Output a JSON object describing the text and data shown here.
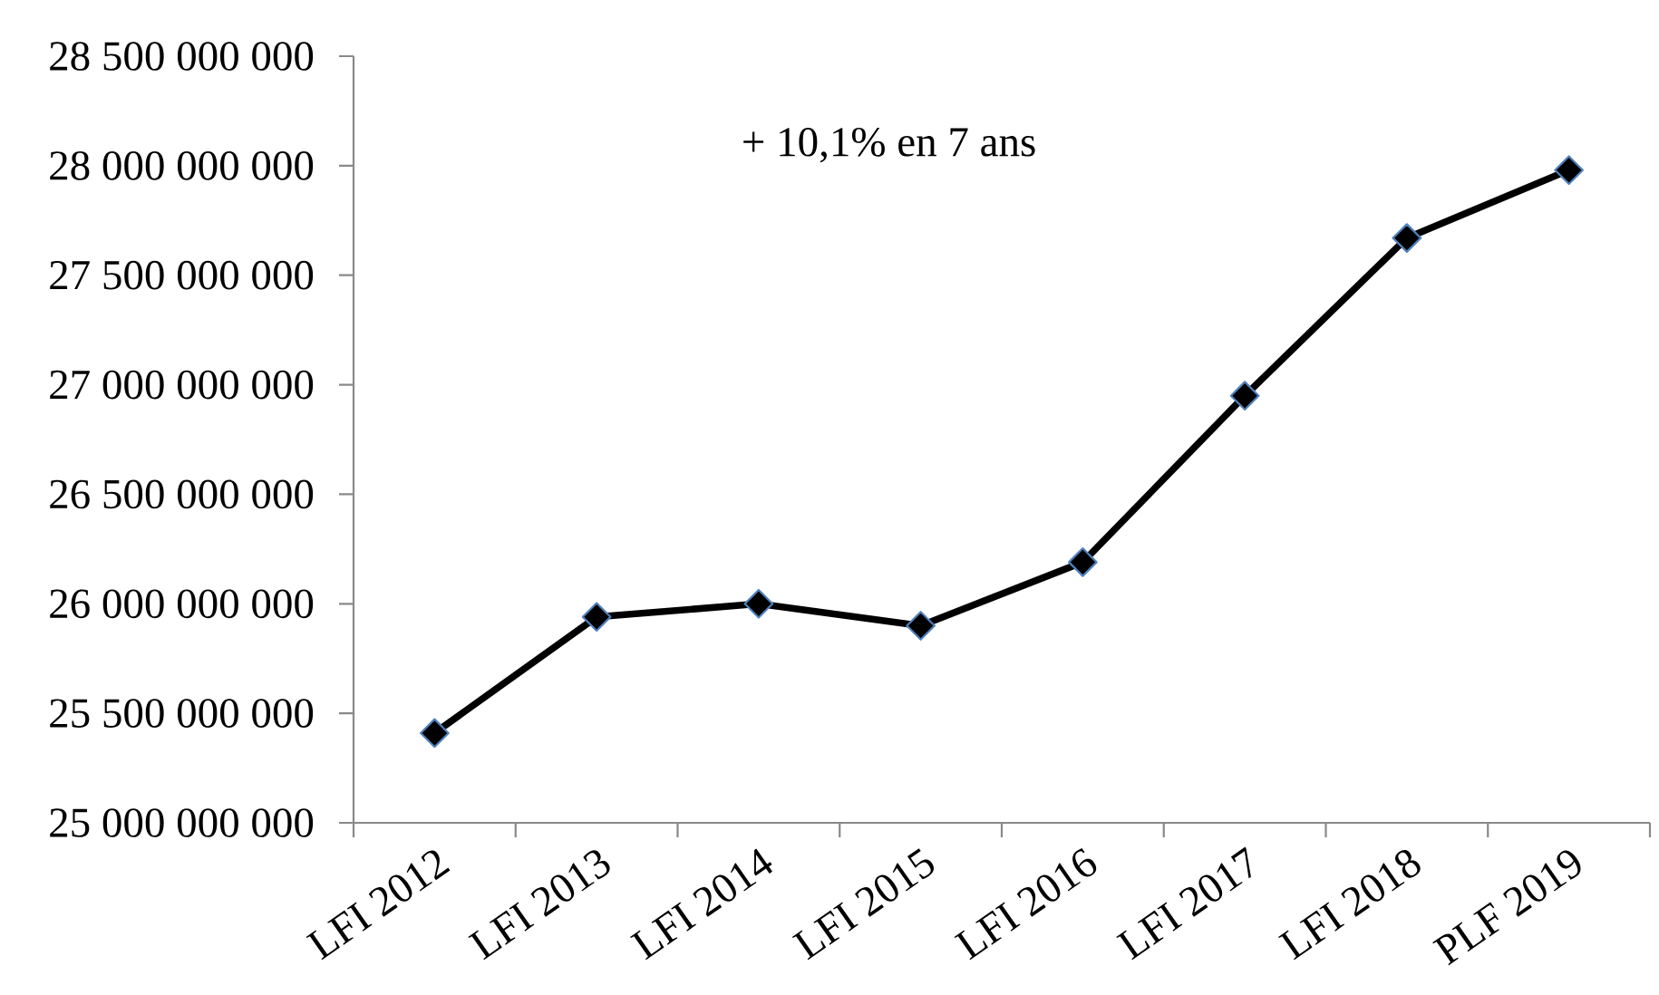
{
  "chart_data": {
    "type": "line",
    "categories": [
      "LFI 2012",
      "LFI 2013",
      "LFI 2014",
      "LFI 2015",
      "LFI 2016",
      "LFI 2017",
      "LFI 2018",
      "PLF 2019"
    ],
    "values": [
      25410000000,
      25940000000,
      26000000000,
      25900000000,
      26190000000,
      26950000000,
      27670000000,
      27980000000
    ],
    "color": "#000000",
    "ylim": [
      25000000000,
      28500000000
    ],
    "yticks": [
      {
        "value": 25000000000,
        "label": "25 000 000 000"
      },
      {
        "value": 25500000000,
        "label": "25 500 000 000"
      },
      {
        "value": 26000000000,
        "label": "26 000 000 000"
      },
      {
        "value": 26500000000,
        "label": "26 500 000 000"
      },
      {
        "value": 27000000000,
        "label": "27 000 000 000"
      },
      {
        "value": 27500000000,
        "label": "27 500 000 000"
      },
      {
        "value": 28000000000,
        "label": "28 000 000 000"
      },
      {
        "value": 28500000000,
        "label": "28 500 000 000"
      }
    ],
    "annotations": [
      "+ 10,1% en 7 ans"
    ],
    "marker": "diamond",
    "line_style": "solid",
    "grid": false
  }
}
